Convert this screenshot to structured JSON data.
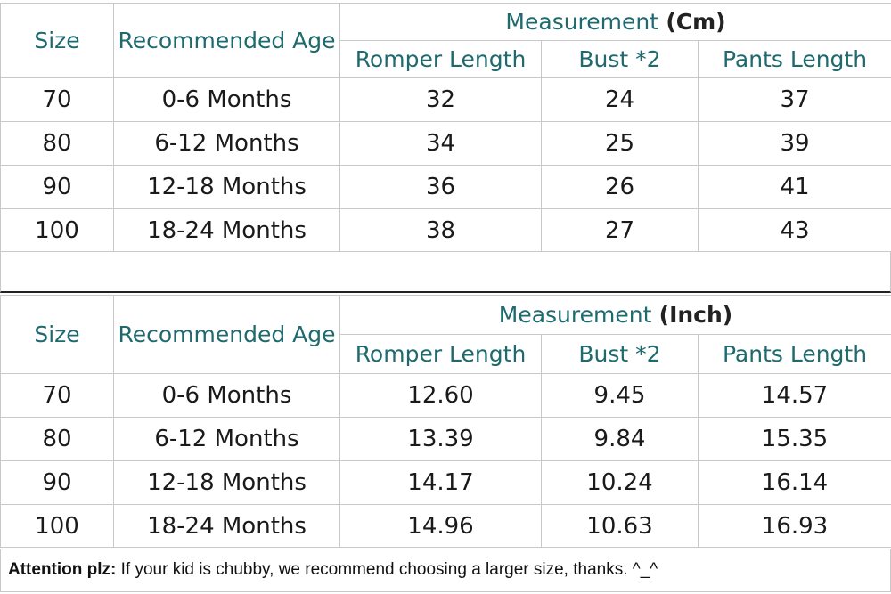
{
  "tables": [
    {
      "headers": {
        "size": "Size",
        "age": "Recommended Age",
        "measurement": "Measurement",
        "unit": "(Cm)",
        "romper": "Romper Length",
        "bust": "Bust *2",
        "pants": "Pants Length"
      },
      "rows": [
        {
          "size": "70",
          "age": "0-6 Months",
          "romper": "32",
          "bust": "24",
          "pants": "37"
        },
        {
          "size": "80",
          "age": "6-12 Months",
          "romper": "34",
          "bust": "25",
          "pants": "39"
        },
        {
          "size": "90",
          "age": "12-18 Months",
          "romper": "36",
          "bust": "26",
          "pants": "41"
        },
        {
          "size": "100",
          "age": "18-24 Months",
          "romper": "38",
          "bust": "27",
          "pants": "43"
        }
      ]
    },
    {
      "headers": {
        "size": "Size",
        "age": "Recommended Age",
        "measurement": "Measurement",
        "unit": "(Inch)",
        "romper": "Romper Length",
        "bust": "Bust *2",
        "pants": "Pants Length"
      },
      "rows": [
        {
          "size": "70",
          "age": "0-6 Months",
          "romper": "12.60",
          "bust": "9.45",
          "pants": "14.57"
        },
        {
          "size": "80",
          "age": "6-12 Months",
          "romper": "13.39",
          "bust": "9.84",
          "pants": "15.35"
        },
        {
          "size": "90",
          "age": "12-18 Months",
          "romper": "14.17",
          "bust": "10.24",
          "pants": "16.14"
        },
        {
          "size": "100",
          "age": "18-24 Months",
          "romper": "14.96",
          "bust": "10.63",
          "pants": "16.93"
        }
      ]
    }
  ],
  "note": {
    "label": "Attention plz:",
    "text": " If your kid is chubby, we recommend choosing a larger size, thanks. ^_^"
  }
}
